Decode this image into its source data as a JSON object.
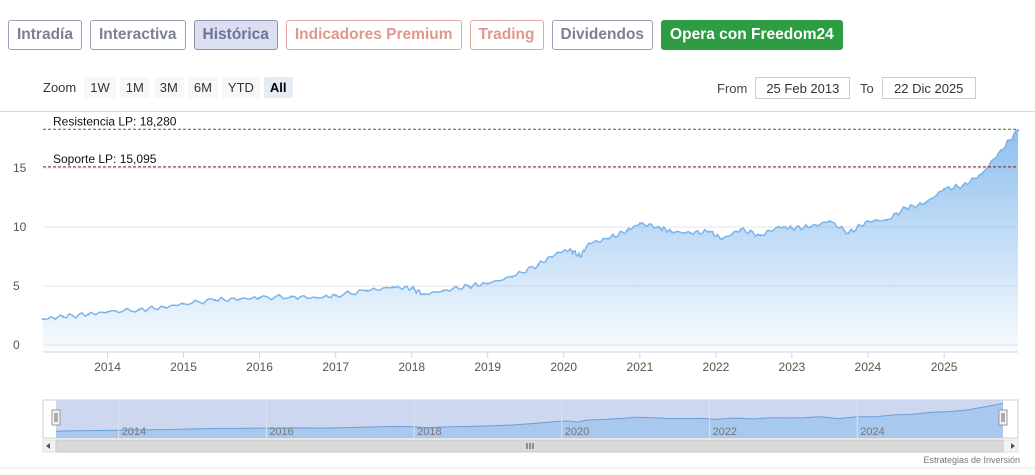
{
  "tabs": [
    {
      "label": "Intradía",
      "style": "normal"
    },
    {
      "label": "Interactiva",
      "style": "normal"
    },
    {
      "label": "Histórica",
      "style": "active"
    },
    {
      "label": "Indicadores Premium",
      "style": "premium"
    },
    {
      "label": "Trading",
      "style": "premium"
    },
    {
      "label": "Dividendos",
      "style": "normal"
    },
    {
      "label": "Opera con Freedom24",
      "style": "freedom"
    }
  ],
  "zoom": {
    "label": "Zoom",
    "buttons": [
      "1W",
      "1M",
      "3M",
      "6M",
      "YTD",
      "All"
    ],
    "active": "All"
  },
  "range": {
    "from_label": "From",
    "from_value": "25 Feb 2013",
    "to_label": "To",
    "to_value": "22 Dic 2025"
  },
  "credit": "Estrategias de Inversión",
  "colors": {
    "line": "#7cb5ec",
    "resistance": "#2e7d32",
    "support": "#8b1a1a",
    "navigator_fill": "#c4d0ec"
  },
  "chart_data": {
    "type": "area",
    "title": "",
    "xlabel": "",
    "ylabel": "",
    "ylim": [
      0,
      18.5
    ],
    "yticks": [
      0,
      5,
      10,
      15
    ],
    "xticks": [
      "2014",
      "2015",
      "2016",
      "2017",
      "2018",
      "2019",
      "2020",
      "2021",
      "2022",
      "2023",
      "2024",
      "2025"
    ],
    "x": [
      "2013-02-25",
      "2013-06-01",
      "2013-10-01",
      "2014-01-01",
      "2014-06-01",
      "2014-10-01",
      "2015-01-01",
      "2015-06-01",
      "2015-10-01",
      "2016-01-01",
      "2016-06-01",
      "2016-10-01",
      "2017-01-01",
      "2017-06-01",
      "2017-10-01",
      "2018-01-01",
      "2018-03-01",
      "2018-06-01",
      "2018-10-01",
      "2019-01-01",
      "2019-05-01",
      "2019-09-01",
      "2019-12-01",
      "2020-02-01",
      "2020-03-20",
      "2020-05-01",
      "2020-08-01",
      "2020-11-01",
      "2021-01-01",
      "2021-04-01",
      "2021-06-01",
      "2021-09-01",
      "2021-12-01",
      "2022-02-01",
      "2022-05-01",
      "2022-08-01",
      "2022-11-01",
      "2023-01-01",
      "2023-04-01",
      "2023-07-01",
      "2023-10-01",
      "2024-01-01",
      "2024-04-01",
      "2024-07-01",
      "2024-10-01",
      "2025-01-01",
      "2025-04-01",
      "2025-07-01",
      "2025-10-01",
      "2025-12-22"
    ],
    "series": [
      {
        "name": "",
        "values": [
          2.2,
          2.4,
          2.6,
          2.8,
          3.0,
          3.2,
          3.5,
          3.8,
          3.9,
          4.0,
          4.1,
          4.0,
          4.2,
          4.6,
          4.9,
          4.8,
          4.3,
          4.6,
          5.0,
          5.2,
          5.8,
          6.8,
          7.8,
          8.1,
          7.5,
          8.6,
          9.0,
          9.7,
          10.3,
          10.0,
          9.6,
          9.5,
          9.6,
          9.0,
          9.8,
          9.3,
          10.0,
          9.9,
          10.0,
          10.5,
          9.5,
          10.5,
          10.6,
          11.6,
          12.0,
          13.2,
          13.5,
          14.5,
          16.5,
          18.2
        ]
      }
    ],
    "annotations": [
      {
        "label": "Resistencia LP: 18,280",
        "value": 18.28,
        "style": "dashed"
      },
      {
        "label": "Soporte LP: 15,095",
        "value": 15.095,
        "style": "dashed"
      }
    ],
    "navigator_labels": [
      "2014",
      "2016",
      "2018",
      "2020",
      "2022",
      "2024"
    ],
    "grid": true,
    "legend": "none"
  }
}
